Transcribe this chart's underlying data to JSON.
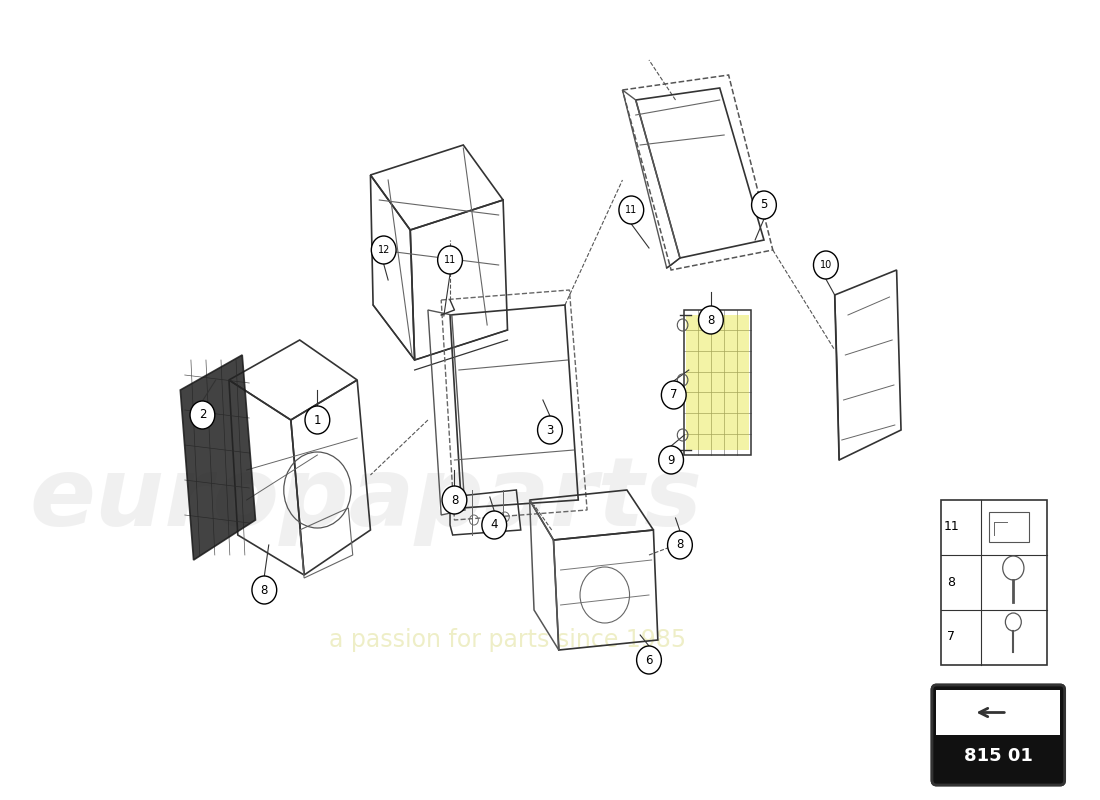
{
  "background_color": "#ffffff",
  "part_number_box": "815 01",
  "watermark1": "europaparts",
  "watermark2": "a passion for parts since 1985",
  "line_color": "#333333",
  "line_color_light": "#666666",
  "dashed_color": "#555555"
}
